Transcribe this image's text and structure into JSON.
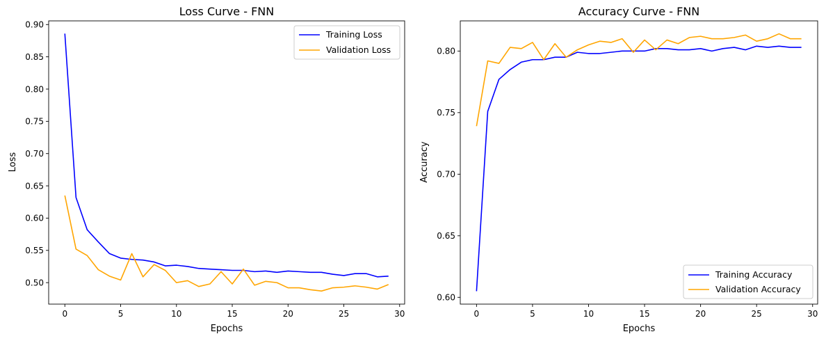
{
  "chart_data": [
    {
      "type": "line",
      "title": "Loss Curve - FNN",
      "xlabel": "Epochs",
      "ylabel": "Loss",
      "xlim": [
        -1.45,
        30.45
      ],
      "ylim": [
        0.4667,
        0.9057
      ],
      "xticks": [
        0,
        5,
        10,
        15,
        20,
        25,
        30
      ],
      "xtick_labels": [
        "0",
        "5",
        "10",
        "15",
        "20",
        "25",
        "30"
      ],
      "yticks": [
        0.5,
        0.55,
        0.6,
        0.65,
        0.7,
        0.75,
        0.8,
        0.85,
        0.9
      ],
      "ytick_labels": [
        "0.50",
        "0.55",
        "0.60",
        "0.65",
        "0.70",
        "0.75",
        "0.80",
        "0.85",
        "0.90"
      ],
      "grid": false,
      "legend_position": "upper right",
      "x": [
        0,
        1,
        2,
        3,
        4,
        5,
        6,
        7,
        8,
        9,
        10,
        11,
        12,
        13,
        14,
        15,
        16,
        17,
        18,
        19,
        20,
        21,
        22,
        23,
        24,
        25,
        26,
        27,
        28,
        29
      ],
      "series": [
        {
          "name": "Training Loss",
          "color": "#0000ff",
          "values": [
            0.886,
            0.632,
            0.582,
            0.563,
            0.545,
            0.538,
            0.536,
            0.535,
            0.532,
            0.526,
            0.527,
            0.525,
            0.522,
            0.521,
            0.52,
            0.519,
            0.519,
            0.517,
            0.518,
            0.516,
            0.518,
            0.517,
            0.516,
            0.516,
            0.513,
            0.511,
            0.514,
            0.514,
            0.509,
            0.51
          ]
        },
        {
          "name": "Validation Loss",
          "color": "#ffa500",
          "values": [
            0.635,
            0.552,
            0.542,
            0.52,
            0.51,
            0.504,
            0.545,
            0.509,
            0.528,
            0.519,
            0.5,
            0.503,
            0.494,
            0.498,
            0.517,
            0.498,
            0.521,
            0.496,
            0.502,
            0.5,
            0.492,
            0.492,
            0.489,
            0.487,
            0.492,
            0.493,
            0.495,
            0.493,
            0.49,
            0.497
          ]
        }
      ]
    },
    {
      "type": "line",
      "title": "Accuracy Curve - FNN",
      "xlabel": "Epochs",
      "ylabel": "Accuracy",
      "xlim": [
        -1.45,
        30.45
      ],
      "ylim": [
        0.5945,
        0.8245
      ],
      "xticks": [
        0,
        5,
        10,
        15,
        20,
        25,
        30
      ],
      "xtick_labels": [
        "0",
        "5",
        "10",
        "15",
        "20",
        "25",
        "30"
      ],
      "yticks": [
        0.6,
        0.65,
        0.7,
        0.75,
        0.8
      ],
      "ytick_labels": [
        "0.60",
        "0.65",
        "0.70",
        "0.75",
        "0.80"
      ],
      "grid": false,
      "legend_position": "lower right",
      "x": [
        0,
        1,
        2,
        3,
        4,
        5,
        6,
        7,
        8,
        9,
        10,
        11,
        12,
        13,
        14,
        15,
        16,
        17,
        18,
        19,
        20,
        21,
        22,
        23,
        24,
        25,
        26,
        27,
        28,
        29
      ],
      "series": [
        {
          "name": "Training Accuracy",
          "color": "#0000ff",
          "values": [
            0.605,
            0.751,
            0.777,
            0.785,
            0.791,
            0.793,
            0.793,
            0.795,
            0.795,
            0.799,
            0.798,
            0.798,
            0.799,
            0.8,
            0.8,
            0.8,
            0.802,
            0.802,
            0.801,
            0.801,
            0.802,
            0.8,
            0.802,
            0.803,
            0.801,
            0.804,
            0.803,
            0.804,
            0.803,
            0.803
          ]
        },
        {
          "name": "Validation Accuracy",
          "color": "#ffa500",
          "values": [
            0.739,
            0.792,
            0.79,
            0.803,
            0.802,
            0.807,
            0.793,
            0.806,
            0.795,
            0.801,
            0.805,
            0.808,
            0.807,
            0.81,
            0.799,
            0.809,
            0.801,
            0.809,
            0.806,
            0.811,
            0.812,
            0.81,
            0.81,
            0.811,
            0.813,
            0.808,
            0.81,
            0.814,
            0.81,
            0.81
          ]
        }
      ]
    }
  ]
}
